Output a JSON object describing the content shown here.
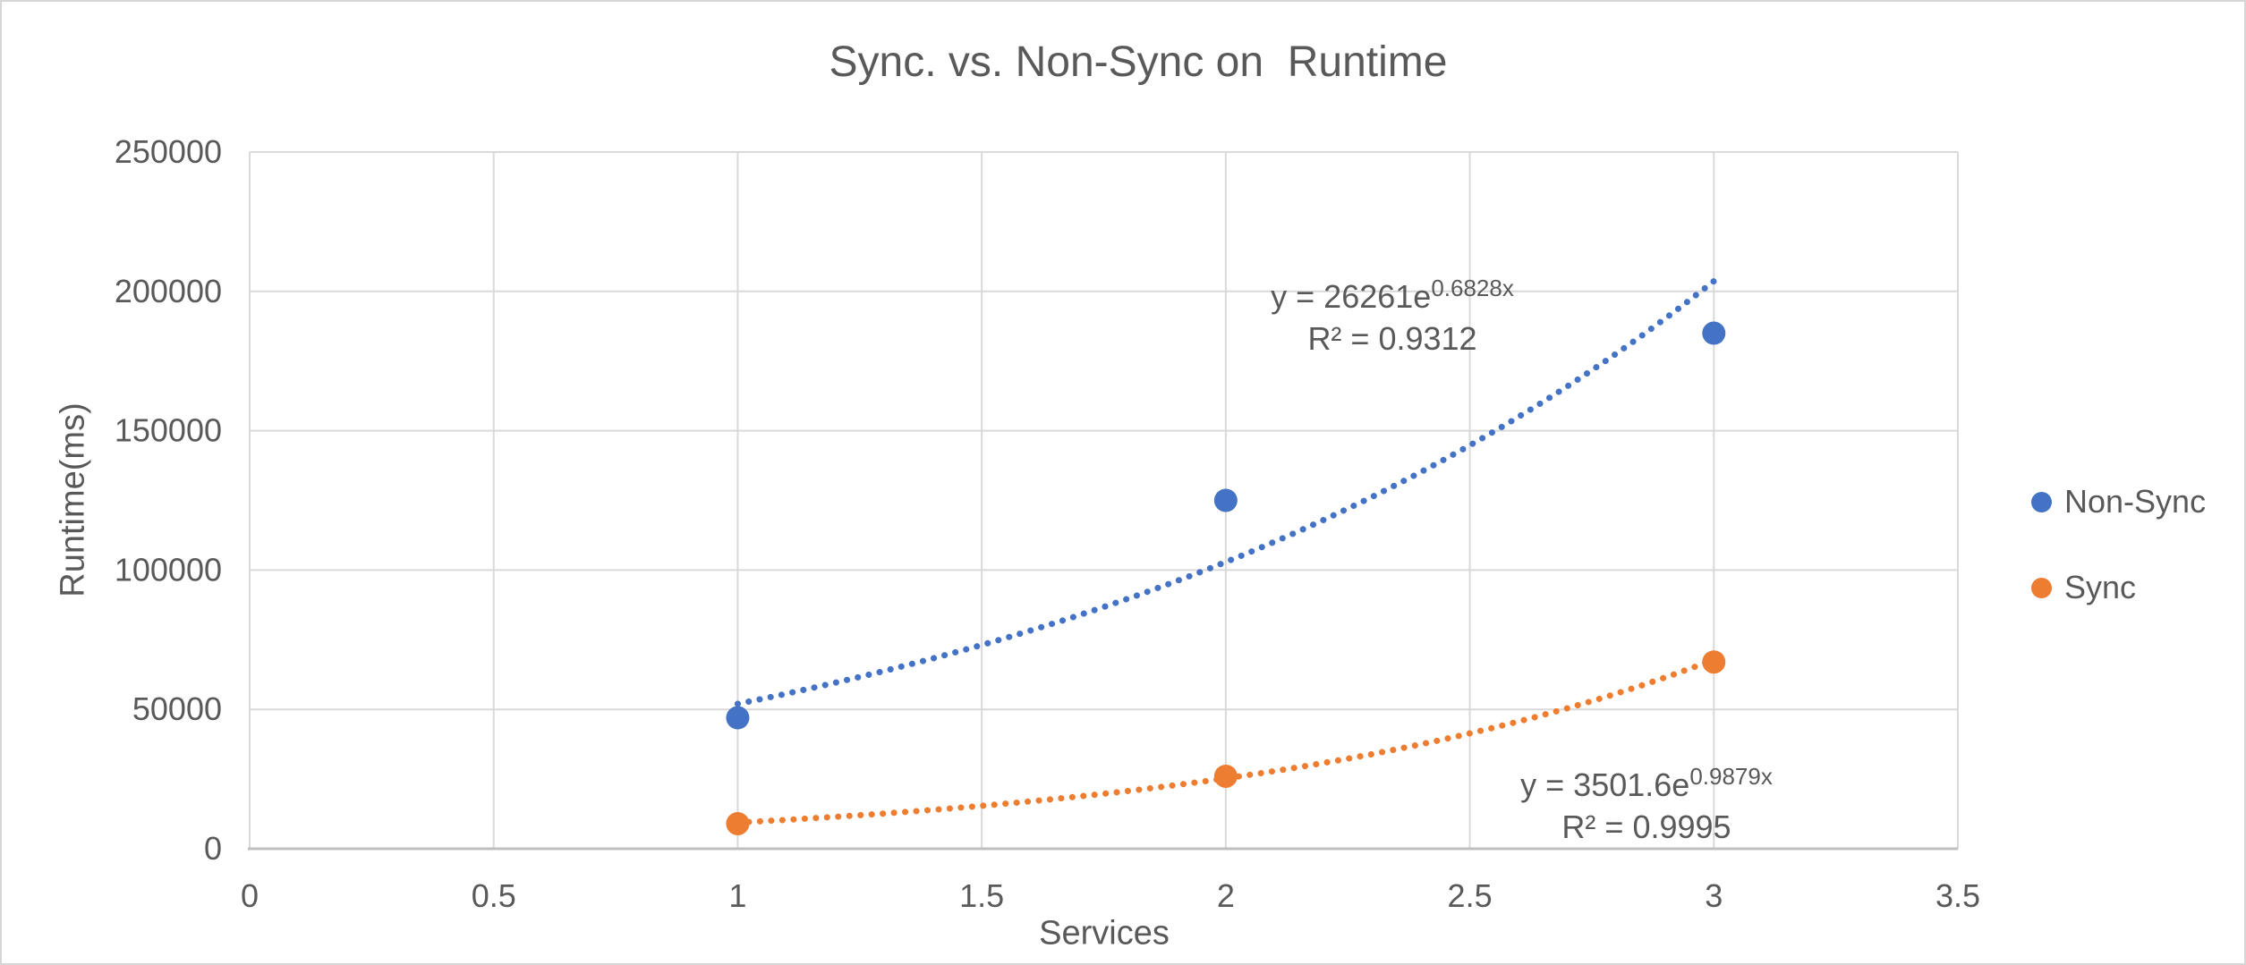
{
  "chart_data": {
    "type": "scatter",
    "title": "Sync. vs. Non-Sync on  Runtime",
    "xlabel": "Services",
    "ylabel": "Runtime(ms)",
    "xlim": [
      0,
      3.5
    ],
    "ylim": [
      0,
      250000
    ],
    "grid": true,
    "legend_position": "right",
    "xticks": {
      "values": [
        0,
        0.5,
        1,
        1.5,
        2,
        2.5,
        3,
        3.5
      ],
      "labels": [
        "0",
        "0.5",
        "1",
        "1.5",
        "2",
        "2.5",
        "3",
        "3.5"
      ]
    },
    "yticks": {
      "values": [
        0,
        50000,
        100000,
        150000,
        200000,
        250000
      ],
      "labels": [
        "0",
        "50000",
        "100000",
        "150000",
        "200000",
        "250000"
      ]
    },
    "series": [
      {
        "name": "Non-Sync",
        "color": "#4472C4",
        "points": [
          [
            1,
            47000
          ],
          [
            2,
            125000
          ],
          [
            3,
            185000
          ]
        ],
        "trendline": {
          "type": "exponential",
          "a": 26261,
          "b": 0.6828,
          "domain": [
            1,
            3
          ],
          "label_base": "y = 26261e",
          "label_exp": "0.6828x",
          "r2_label": "R² = 0.9312"
        }
      },
      {
        "name": "Sync",
        "color": "#ED7D31",
        "points": [
          [
            1,
            9000
          ],
          [
            2,
            26000
          ],
          [
            3,
            67000
          ]
        ],
        "trendline": {
          "type": "exponential",
          "a": 3501.6,
          "b": 0.9879,
          "domain": [
            1,
            3
          ],
          "label_base": "y = 3501.6e",
          "label_exp": "0.9879x",
          "r2_label": "R² = 0.9995"
        }
      }
    ],
    "colors": {
      "text": "#595959",
      "gridline": "#D9D9D9",
      "axis_line": "#BFBFBF",
      "page_border": "#D6D6D6"
    }
  }
}
